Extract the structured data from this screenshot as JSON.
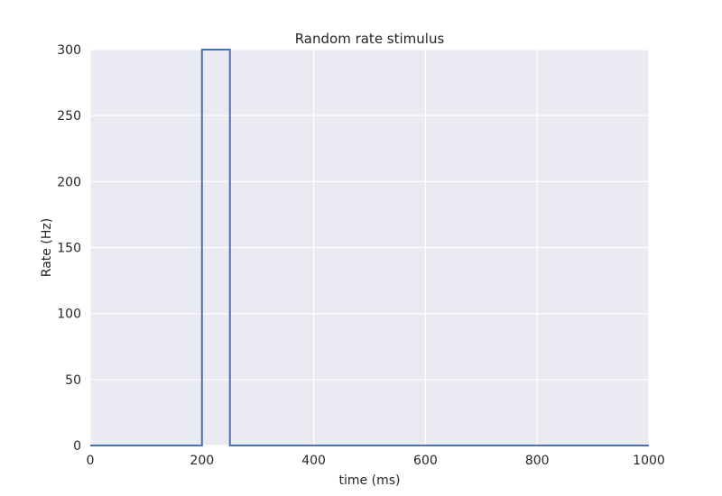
{
  "chart_data": {
    "type": "line",
    "title": "Random rate stimulus",
    "xlabel": "time (ms)",
    "ylabel": "Rate (Hz)",
    "xlim": [
      0,
      1000
    ],
    "ylim": [
      0,
      300
    ],
    "xticks": [
      0,
      200,
      400,
      600,
      800,
      1000
    ],
    "yticks": [
      0,
      50,
      100,
      150,
      200,
      250,
      300
    ],
    "grid": true,
    "series": [
      {
        "color": "#4c72b0",
        "x": [
          0,
          200,
          200,
          250,
          250,
          1000
        ],
        "y": [
          0,
          0,
          300,
          300,
          0,
          0
        ]
      }
    ],
    "background_color": "#eaeaf2",
    "grid_color": "#ffffff"
  }
}
